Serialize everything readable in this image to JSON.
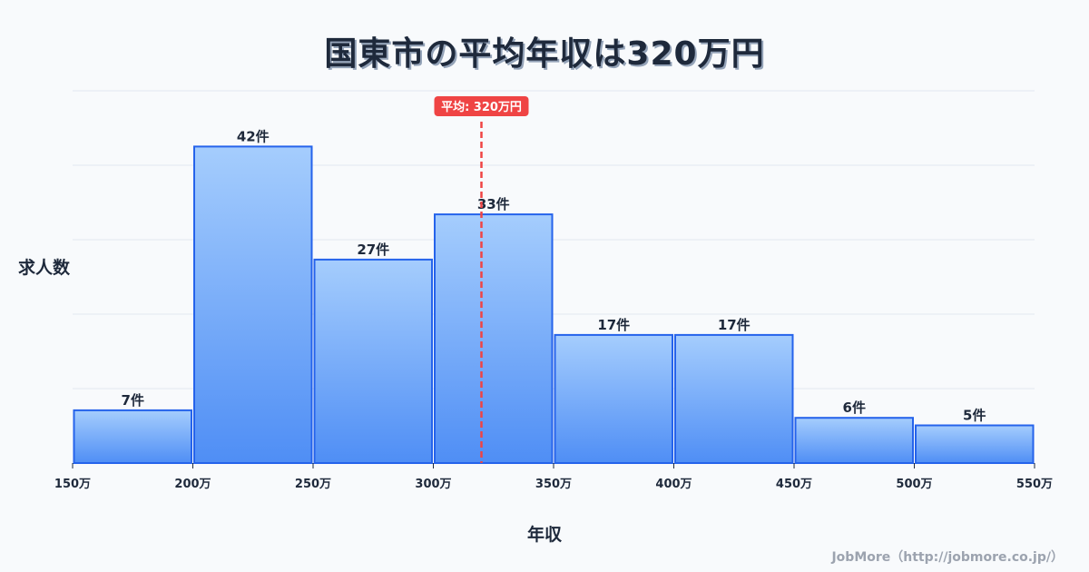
{
  "title": "国東市の平均年収は320万円",
  "credit": "JobMore（http://jobmore.co.jp/）",
  "chart_data": {
    "type": "bar",
    "title": "国東市の平均年収は320万円",
    "xlabel": "年収",
    "ylabel": "求人数",
    "categories": [
      "150-200万",
      "200-250万",
      "250-300万",
      "300-350万",
      "350-400万",
      "400-450万",
      "450-500万",
      "500-550万"
    ],
    "bin_edges": [
      150,
      200,
      250,
      300,
      350,
      400,
      450,
      500,
      550
    ],
    "tick_labels": [
      "150万",
      "200万",
      "250万",
      "300万",
      "350万",
      "400万",
      "450万",
      "500万",
      "550万"
    ],
    "values": [
      7,
      42,
      27,
      33,
      17,
      17,
      6,
      5
    ],
    "value_labels": [
      "7件",
      "42件",
      "27件",
      "33件",
      "17件",
      "17件",
      "6件",
      "5件"
    ],
    "mean": 320,
    "mean_label": "平均: 320万円",
    "grid": true,
    "colors": {
      "bar_top": "#a5cdfd",
      "bar_bottom": "#4f8ef5",
      "bar_border": "#2563eb",
      "mean_line": "#ef4444",
      "grid": "#e2e8f0"
    }
  }
}
